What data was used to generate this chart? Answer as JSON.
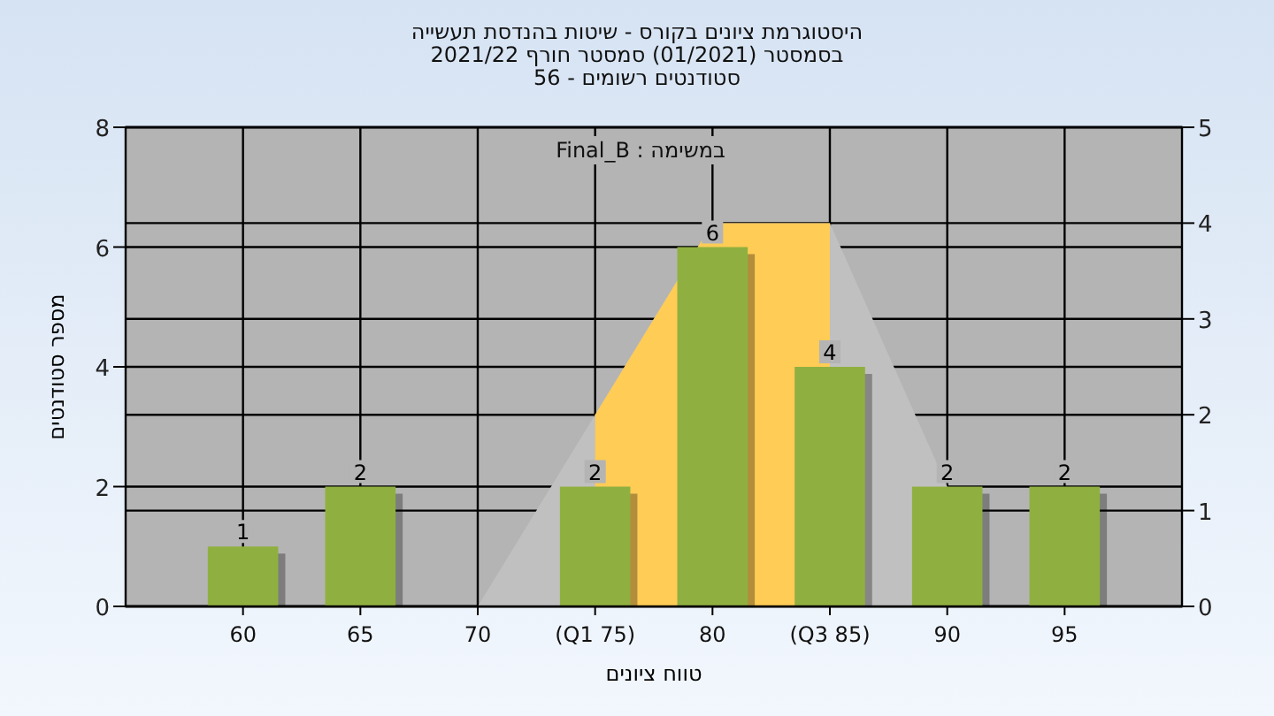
{
  "chart_data": {
    "type": "bar",
    "title": "היסטוגרמת ציונים בקורס - שיטות בהנדסת תעשייה",
    "subtitle": "בסמסטר  (01/2021)  סמסטר חורף 2021/22\nסטודנטים רשומים - 56",
    "xlabel": "טווח ציונים",
    "ylabel": "מספר סטודנטים",
    "annotations": [
      "במשימה : Final_B"
    ],
    "categories": [
      "60",
      "65",
      "70",
      "(Q1 75)",
      "80",
      "(Q3 85)",
      "90",
      "95"
    ],
    "series": [
      {
        "type": "area",
        "axis": "y2",
        "color": "#c0c0c0",
        "values": [
          null,
          null,
          0,
          2,
          4,
          4,
          1.25,
          null
        ]
      },
      {
        "type": "area",
        "axis": "y2",
        "color": "#ffcc55",
        "values": [
          null,
          null,
          null,
          2,
          4,
          4,
          null,
          null
        ]
      },
      {
        "color": "#8fb040",
        "values": [
          1,
          2,
          0,
          2,
          6,
          4,
          2,
          2
        ],
        "value_labels": [
          "1",
          "2",
          null,
          "2",
          "6",
          "4",
          "2",
          "2"
        ]
      }
    ],
    "ylim": [
      0,
      8
    ],
    "yticks": [
      0,
      2,
      4,
      6,
      8
    ],
    "y2lim": [
      0,
      5
    ],
    "y2ticks": [
      0,
      1,
      2,
      3,
      4,
      5
    ],
    "grid": true
  }
}
